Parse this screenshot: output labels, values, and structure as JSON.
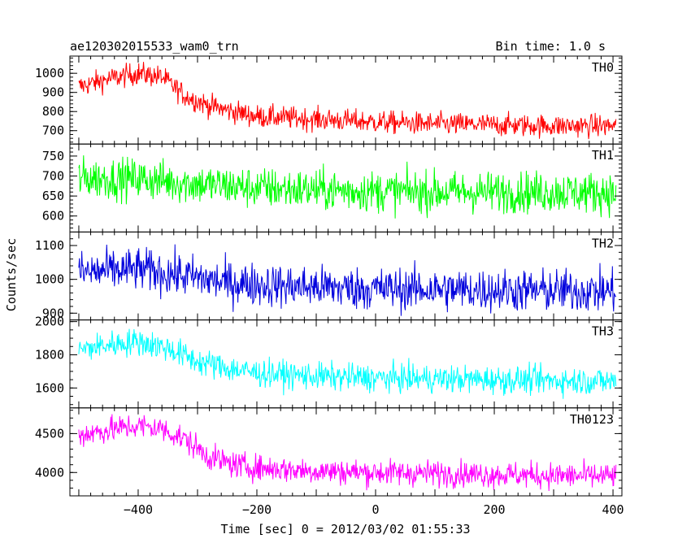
{
  "header": {
    "title": "ae120302015533_wam0_trn",
    "bin_time": "Bin time: 1.0 s"
  },
  "axes": {
    "ylabel": "Counts/sec",
    "xlabel": "Time [sec] 0 = 2012/03/02 01:55:33"
  },
  "chart_data": {
    "type": "line",
    "title": "ae120302015533_wam0_trn",
    "xlabel": "Time [sec] 0 = 2012/03/02 01:55:33",
    "ylabel": "Counts/sec",
    "xlim": [
      -515,
      415
    ],
    "x_ticks": [
      -400,
      -200,
      0,
      200,
      400
    ],
    "x_minor_step": 20,
    "x_start": -500,
    "x_end": 405,
    "bin_time_s": 1.0,
    "grid": false,
    "panels": [
      {
        "name": "TH0",
        "color": "#ff0000",
        "ylim": [
          630,
          1090
        ],
        "y_ticks": [
          700,
          800,
          900,
          1000
        ],
        "y_minor_step": 20,
        "trend": [
          [
            -500,
            930
          ],
          [
            -450,
            970
          ],
          [
            -400,
            1000
          ],
          [
            -360,
            980
          ],
          [
            -320,
            880
          ],
          [
            -280,
            830
          ],
          [
            -240,
            800
          ],
          [
            -200,
            775
          ],
          [
            -100,
            760
          ],
          [
            0,
            745
          ],
          [
            100,
            735
          ],
          [
            200,
            730
          ],
          [
            300,
            725
          ],
          [
            405,
            725
          ]
        ],
        "noise_amplitude": 30
      },
      {
        "name": "TH1",
        "color": "#00ff00",
        "ylim": [
          560,
          780
        ],
        "y_ticks": [
          600,
          650,
          700,
          750
        ],
        "y_minor_step": 10,
        "trend": [
          [
            -500,
            695
          ],
          [
            -400,
            693
          ],
          [
            -300,
            680
          ],
          [
            -200,
            670
          ],
          [
            -100,
            665
          ],
          [
            0,
            662
          ],
          [
            100,
            660
          ],
          [
            200,
            660
          ],
          [
            300,
            660
          ],
          [
            405,
            658
          ]
        ],
        "noise_amplitude": 26
      },
      {
        "name": "TH2",
        "color": "#0000dd",
        "ylim": [
          880,
          1140
        ],
        "y_ticks": [
          900,
          1000,
          1100
        ],
        "y_minor_step": 20,
        "trend": [
          [
            -500,
            1020
          ],
          [
            -400,
            1030
          ],
          [
            -320,
            1010
          ],
          [
            -250,
            990
          ],
          [
            -150,
            980
          ],
          [
            0,
            972
          ],
          [
            100,
            970
          ],
          [
            200,
            968
          ],
          [
            300,
            966
          ],
          [
            405,
            965
          ]
        ],
        "noise_amplitude": 32
      },
      {
        "name": "TH3",
        "color": "#00ffff",
        "ylim": [
          1480,
          2010
        ],
        "y_ticks": [
          1600,
          1800,
          2000
        ],
        "y_minor_step": 50,
        "trend": [
          [
            -500,
            1830
          ],
          [
            -450,
            1860
          ],
          [
            -400,
            1880
          ],
          [
            -350,
            1840
          ],
          [
            -300,
            1760
          ],
          [
            -250,
            1720
          ],
          [
            -200,
            1690
          ],
          [
            -100,
            1670
          ],
          [
            0,
            1660
          ],
          [
            100,
            1655
          ],
          [
            200,
            1650
          ],
          [
            300,
            1645
          ],
          [
            405,
            1640
          ]
        ],
        "noise_amplitude": 42
      },
      {
        "name": "TH0123",
        "color": "#ff00ff",
        "ylim": [
          3700,
          4830
        ],
        "y_ticks": [
          4000,
          4500
        ],
        "y_minor_step": 100,
        "trend": [
          [
            -500,
            4480
          ],
          [
            -440,
            4560
          ],
          [
            -400,
            4600
          ],
          [
            -360,
            4560
          ],
          [
            -320,
            4420
          ],
          [
            -280,
            4200
          ],
          [
            -240,
            4100
          ],
          [
            -200,
            4060
          ],
          [
            -100,
            4020
          ],
          [
            0,
            4000
          ],
          [
            100,
            3990
          ],
          [
            200,
            3975
          ],
          [
            300,
            3960
          ],
          [
            405,
            3950
          ]
        ],
        "noise_amplitude": 85
      }
    ]
  }
}
